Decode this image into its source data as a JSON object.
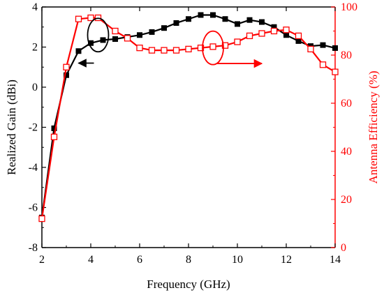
{
  "chart_data": {
    "type": "line",
    "xlabel": "Frequency (GHz)",
    "ylabel": "Realized Gain (dBi)",
    "y2label": "Antenna Efficiency (%)",
    "xlim": [
      2,
      14
    ],
    "ylim": [
      -8,
      4
    ],
    "y2lim": [
      0,
      100
    ],
    "xticks": [
      "2",
      "4",
      "6",
      "8",
      "10",
      "12",
      "14"
    ],
    "yticks": [
      "4",
      "2",
      "0",
      "-2",
      "-4",
      "-6",
      "-8"
    ],
    "y2ticks": [
      "100",
      "80",
      "60",
      "40",
      "20",
      "0"
    ],
    "colors": {
      "gain": "#000000",
      "efficiency": "#ff0000"
    },
    "series": [
      {
        "axis": "left",
        "marker": "filled-square",
        "x": [
          2.0,
          2.5,
          3.0,
          3.5,
          4.0,
          4.5,
          5.0,
          5.5,
          6.0,
          6.5,
          7.0,
          7.5,
          8.0,
          8.5,
          9.0,
          9.5,
          10.0,
          10.5,
          11.0,
          11.5,
          12.0,
          12.5,
          13.0,
          13.5,
          14.0
        ],
        "y": [
          -6.5,
          -2.05,
          0.6,
          1.8,
          2.2,
          2.35,
          2.4,
          2.5,
          2.6,
          2.75,
          2.95,
          3.2,
          3.4,
          3.6,
          3.6,
          3.4,
          3.15,
          3.35,
          3.25,
          3.0,
          2.6,
          2.3,
          2.05,
          2.1,
          1.95
        ]
      },
      {
        "axis": "right",
        "marker": "open-square",
        "x": [
          2.0,
          2.5,
          3.0,
          3.5,
          4.0,
          4.3,
          5.0,
          5.5,
          6.0,
          6.5,
          7.0,
          7.5,
          8.0,
          8.5,
          9.0,
          9.5,
          10.0,
          10.5,
          11.0,
          11.5,
          12.0,
          12.5,
          13.0,
          13.5,
          14.0
        ],
        "y": [
          12,
          46,
          75,
          95,
          95.5,
          95.5,
          90,
          87,
          83,
          82,
          82,
          82,
          82.5,
          83,
          83.5,
          84,
          85.5,
          88,
          89,
          90,
          90.5,
          88,
          82.5,
          76,
          73
        ]
      }
    ],
    "annotations": [
      {
        "type": "ellipse-with-arrow",
        "series_axis": "left",
        "center": [
          4.3,
          2.6
        ],
        "arrow_to": [
          3.5,
          1.2
        ]
      },
      {
        "type": "ellipse-with-arrow",
        "series_axis": "right",
        "center": [
          9.0,
          83
        ],
        "arrow_to": [
          11.0,
          76.5
        ]
      }
    ]
  }
}
